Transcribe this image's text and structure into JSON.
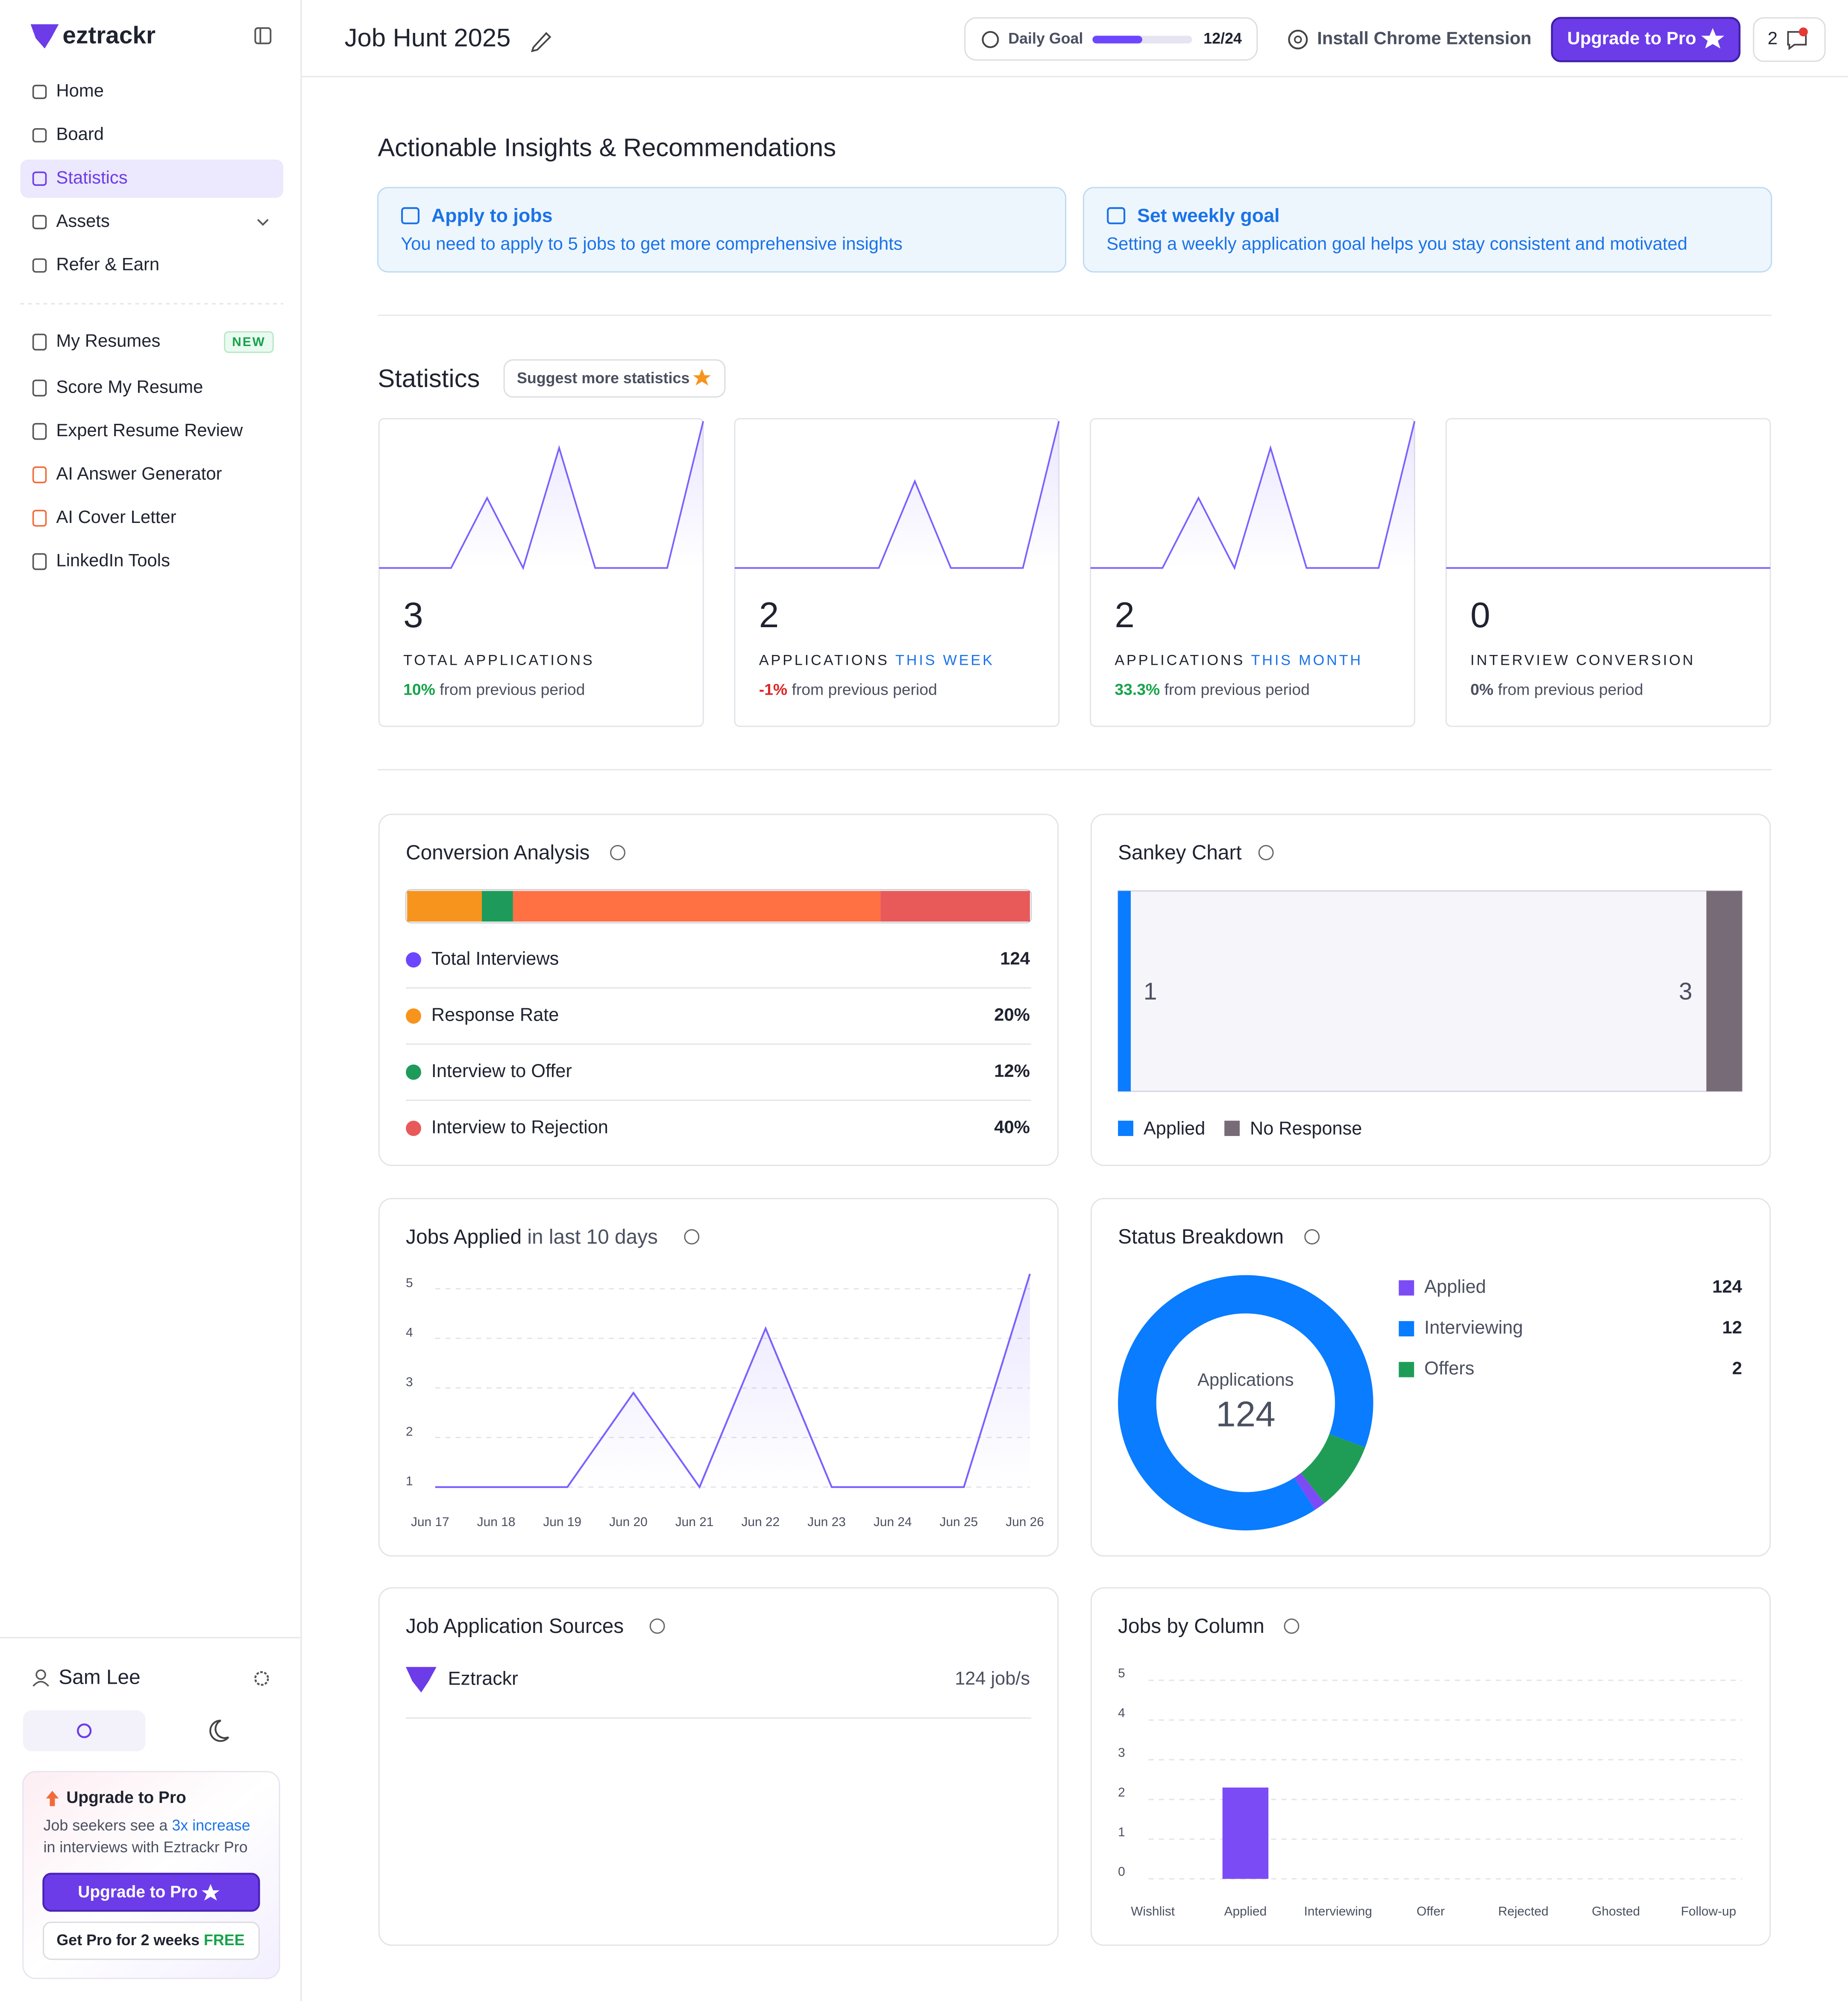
{
  "sidebar": {
    "brand": "eztrackr",
    "nav": [
      "Home",
      "Board",
      "Statistics",
      "Assets",
      "Refer & Earn"
    ],
    "active": "Statistics",
    "tools": [
      {
        "label": "My Resumes",
        "badge": "NEW"
      },
      {
        "label": "Score My Resume"
      },
      {
        "label": "Expert Resume Review"
      },
      {
        "label": "AI Answer Generator"
      },
      {
        "label": "AI Cover Letter"
      },
      {
        "label": "LinkedIn Tools"
      }
    ],
    "user": "Sam Lee",
    "promo": {
      "title": "Upgrade to Pro",
      "text_before": "Job seekers see a",
      "highlight": "3x increase",
      "text_after": "in interviews with Eztrackr Pro",
      "button": "Upgrade to Pro",
      "trial": "Get Pro for 2 weeks",
      "trial_highlight": "FREE"
    }
  },
  "header": {
    "title": "Job Hunt 2025",
    "daily_goal": {
      "label": "Daily Goal",
      "done": 12,
      "target": 24,
      "progress_label": "12/24"
    },
    "extension": "Install Chrome Extension",
    "upgrade": "Upgrade to Pro",
    "notifications": "2"
  },
  "insights": {
    "title": "Actionable Insights & Recommendations",
    "cards": [
      {
        "title": "Apply to jobs",
        "text": "You need to apply to 5 jobs to get more comprehensive insights"
      },
      {
        "title": "Set weekly goal",
        "text": "Setting a weekly application goal helps you stay consistent and motivated"
      }
    ]
  },
  "statistics": {
    "title": "Statistics",
    "suggest": "Suggest more statistics",
    "trend_ylim": [
      1,
      5.4
    ],
    "cards": [
      {
        "value": "3",
        "label": "TOTAL APPLICATIONS",
        "change": "10%",
        "change_text": "from previous period",
        "trend": [
          1,
          1,
          1,
          3.1,
          1,
          4.6,
          1,
          1,
          1,
          5.4
        ]
      },
      {
        "value": "2",
        "label": "APPLICATIONS",
        "label_highlight": "THIS WEEK",
        "change": "-1%",
        "change_text": "from previous period",
        "trend": [
          1,
          1,
          1,
          1,
          1,
          3.6,
          1,
          1,
          1,
          5.4
        ]
      },
      {
        "value": "2",
        "label": "APPLICATIONS",
        "label_highlight": "THIS MONTH",
        "change": "33.3%",
        "change_text": "from previous period",
        "trend": [
          1,
          1,
          1,
          3.1,
          1,
          4.6,
          1,
          1,
          1,
          5.4
        ]
      },
      {
        "value": "0",
        "label": "INTERVIEW CONVERSION",
        "change": "0%",
        "change_text": "from previous period",
        "trend": [
          1,
          1,
          1,
          1,
          1,
          1,
          1,
          1,
          1,
          1
        ]
      }
    ]
  },
  "conversion": {
    "title": "Conversion Analysis",
    "bar": [
      {
        "value": 12,
        "color": "#f7941d"
      },
      {
        "value": 5,
        "color": "#1e9b5a"
      },
      {
        "value": 59,
        "color": "#ff7043"
      },
      {
        "value": 24,
        "color": "#e85a5a"
      }
    ],
    "rows": [
      {
        "name": "Total Interviews",
        "value": "124",
        "color": "#6c47ff"
      },
      {
        "name": "Response Rate",
        "value": "20%",
        "color": "#f7941d"
      },
      {
        "name": "Interview to Offer",
        "value": "12%",
        "color": "#1e9b5a"
      },
      {
        "name": "Interview to Rejection",
        "value": "40%",
        "color": "#e85a5a"
      }
    ]
  },
  "sankey": {
    "title": "Sankey Chart",
    "nodes": [
      {
        "name": "Applied",
        "value": 1,
        "color": "#0a7cff"
      },
      {
        "name": "No Response",
        "value": 3,
        "color": "#786b78"
      }
    ]
  },
  "status": {
    "title": "Status Breakdown",
    "center_label": "Applications",
    "center_value": "124",
    "items": [
      {
        "name": "Applied",
        "value": 124,
        "color": "#7b4cf6",
        "ring_color": "#0a7cff"
      },
      {
        "name": "Interviewing",
        "value": 12,
        "color": "#0a7cff",
        "ring_color": "#1f9d57"
      },
      {
        "name": "Offers",
        "value": 2,
        "color": "#1f9d57",
        "ring_color": "#7b4cf6"
      }
    ]
  },
  "sources": {
    "title": "Job Application Sources",
    "items": [
      {
        "name": "Eztrackr",
        "count": "124 job/s"
      }
    ]
  },
  "chart_data": [
    {
      "type": "line",
      "title": "Jobs Applied",
      "title_suffix": "in last 10 days",
      "categories": [
        "Jun 17",
        "Jun 18",
        "Jun 19",
        "Jun 20",
        "Jun 21",
        "Jun 22",
        "Jun 23",
        "Jun 24",
        "Jun 25",
        "Jun 26"
      ],
      "values": [
        1,
        1,
        1,
        2.9,
        1,
        4.2,
        1,
        1,
        1,
        5.3
      ],
      "color": "#7b61ff",
      "ylim": [
        0.95,
        5.3
      ],
      "yticks": [
        1,
        2,
        3,
        4,
        5
      ],
      "grid": true
    },
    {
      "type": "bar",
      "title": "Jobs by Column",
      "categories": [
        "Wishlist",
        "Applied",
        "Interviewing",
        "Offer",
        "Rejected",
        "Ghosted",
        "Follow-up"
      ],
      "values": [
        0,
        2.3,
        0,
        0,
        0,
        0,
        0
      ],
      "color": "#7b4cf6",
      "ylim": [
        0,
        5.4
      ],
      "yticks": [
        0,
        1,
        2,
        3,
        4,
        5
      ],
      "grid": true
    }
  ]
}
